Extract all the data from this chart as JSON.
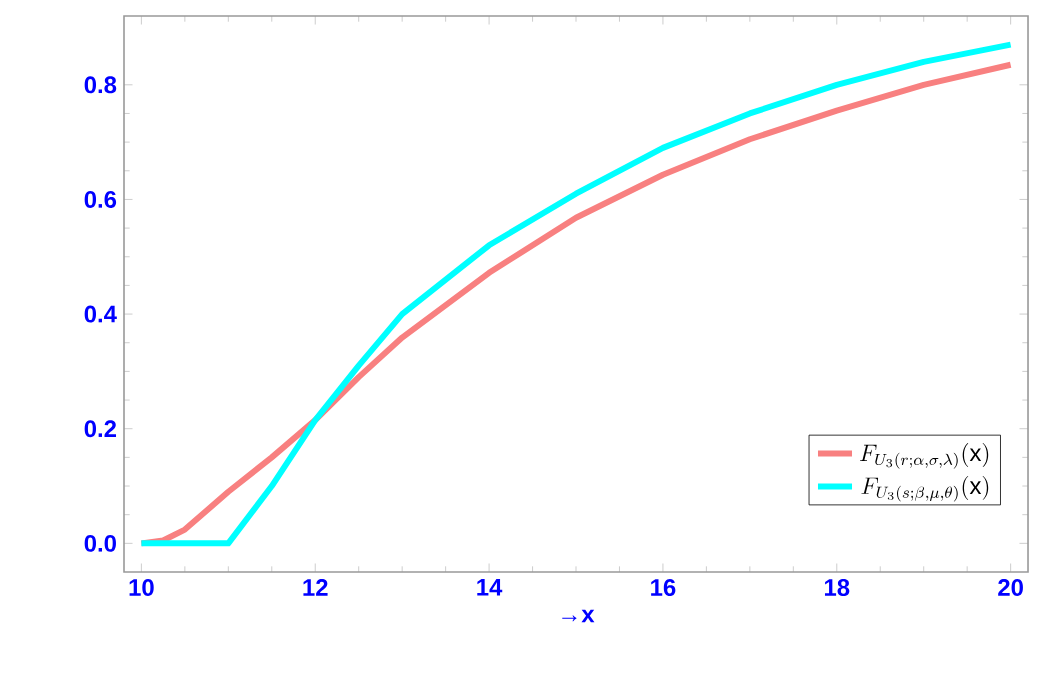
{
  "chart_data": {
    "type": "line",
    "xlabel": "→x",
    "xlim": [
      9.8,
      20.2
    ],
    "ylim": [
      -0.05,
      0.92
    ],
    "xticks": [
      10,
      12,
      14,
      16,
      18,
      20
    ],
    "yticks": [
      {
        "value": 0,
        "label": "0.0"
      },
      0.2,
      0.4,
      0.6,
      0.8
    ],
    "legend": "bottom right",
    "grid": false,
    "marker": "none",
    "line_style": "solid",
    "series": [
      {
        "name": "F_{U_3(r;\\alpha,\\sigma,\\lambda)}(\\mathrm{x})",
        "color": "#f88080",
        "x": [
          10,
          10.25,
          10.5,
          11,
          11.5,
          12,
          12.5,
          13,
          14,
          15,
          16,
          17,
          18,
          19,
          20
        ],
        "values": [
          0,
          0.005,
          0.024,
          0.09,
          0.15,
          0.215,
          0.29,
          0.359,
          0.472,
          0.568,
          0.643,
          0.705,
          0.755,
          0.8,
          0.835
        ]
      },
      {
        "name": "F_{U_3(s;\\beta,\\mu,\\theta)}(\\mathrm{x})",
        "color": "#00ffff",
        "x": [
          10,
          11,
          11.5,
          12,
          12.5,
          13,
          14,
          15,
          16,
          17,
          18,
          19,
          20
        ],
        "values": [
          0,
          0,
          0.1,
          0.215,
          0.31,
          0.4,
          0.52,
          0.61,
          0.69,
          0.75,
          0.8,
          0.84,
          0.87
        ]
      }
    ]
  }
}
